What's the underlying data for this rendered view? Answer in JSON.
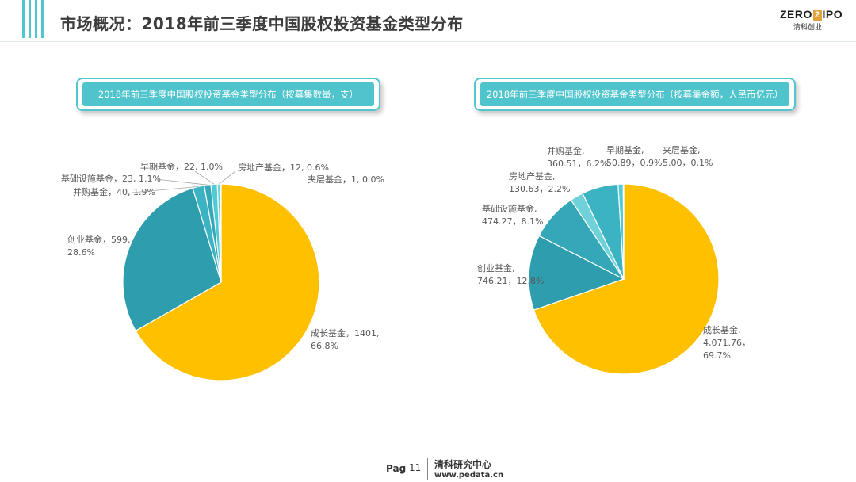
{
  "header": {
    "title": "市场概况：2018年前三季度中国股权投资基金类型分布",
    "logo": {
      "left": "ZERO",
      "box": "2",
      "right": "IPO",
      "sub": "清科创业"
    }
  },
  "colors": {
    "accent": "#52c6cf",
    "growth": "#FFC000",
    "venture": "#2E9DAD",
    "m_and_a": "#3BB3C2",
    "infrastructure": "#34A8B8",
    "early_stage": "#4ECBD6",
    "real_estate": "#6FD2DB",
    "mezzanine": "#9ADDE3"
  },
  "chart_data": [
    {
      "type": "pie",
      "title": "2018年前三季度中国股权投资基金类型分布（按募集数量，支）",
      "slices": [
        {
          "name": "成长基金",
          "value": 1401,
          "percent": "66.8%",
          "label": [
            "成长基金，1401,",
            "66.8%"
          ],
          "color": "#FFC000"
        },
        {
          "name": "创业基金",
          "value": 599,
          "percent": "28.6%",
          "label": [
            "创业基金，599,",
            "28.6%"
          ],
          "color": "#2E9DAD"
        },
        {
          "name": "并购基金",
          "value": 40,
          "percent": "1.9%",
          "label": [
            "并购基金，40, 1.9%"
          ],
          "color": "#3BB3C2"
        },
        {
          "name": "基础设施基金",
          "value": 23,
          "percent": "1.1%",
          "label": [
            "基础设施基金，23, 1.1%"
          ],
          "color": "#34A8B8"
        },
        {
          "name": "早期基金",
          "value": 22,
          "percent": "1.0%",
          "label": [
            "早期基金，22, 1.0%"
          ],
          "color": "#4ECBD6"
        },
        {
          "name": "房地产基金",
          "value": 12,
          "percent": "0.6%",
          "label": [
            "房地产基金，12, 0.6%"
          ],
          "color": "#6FD2DB"
        },
        {
          "name": "夹层基金",
          "value": 1,
          "percent": "0.0%",
          "label": [
            "夹层基金，1, 0.0%"
          ],
          "color": "#9ADDE3"
        }
      ]
    },
    {
      "type": "pie",
      "title": "2018年前三季度中国股权投资基金类型分布（按募集金额，人民币亿元）",
      "slices": [
        {
          "name": "成长基金",
          "value": 4071.76,
          "percent": "69.7%",
          "label": [
            "成长基金,",
            "4,071.76，",
            "69.7%"
          ],
          "color": "#FFC000"
        },
        {
          "name": "创业基金",
          "value": 746.21,
          "percent": "12.8%",
          "label": [
            "创业基金,",
            "746.21，12.8%"
          ],
          "color": "#2E9DAD"
        },
        {
          "name": "基础设施基金",
          "value": 474.27,
          "percent": "8.1%",
          "label": [
            "基础设施基金,",
            "474.27，8.1%"
          ],
          "color": "#34A8B8"
        },
        {
          "name": "房地产基金",
          "value": 130.63,
          "percent": "2.2%",
          "label": [
            "房地产基金,",
            "130.63，2.2%"
          ],
          "color": "#6FD2DB"
        },
        {
          "name": "并购基金",
          "value": 360.51,
          "percent": "6.2%",
          "label": [
            "并购基金,",
            "360.51，6.2%"
          ],
          "color": "#3BB3C2"
        },
        {
          "name": "早期基金",
          "value": 50.89,
          "percent": "0.9%",
          "label": [
            "早期基金,",
            "50.89，0.9%"
          ],
          "color": "#4ECBD6"
        },
        {
          "name": "夹层基金",
          "value": 5.0,
          "percent": "0.1%",
          "label": [
            "夹层基金,",
            "5.00，0.1%"
          ],
          "color": "#9ADDE3"
        }
      ]
    }
  ],
  "footer": {
    "page_label": "Page",
    "page_number": "11",
    "org": "清科研究中心",
    "url": "www.pedata.cn"
  }
}
